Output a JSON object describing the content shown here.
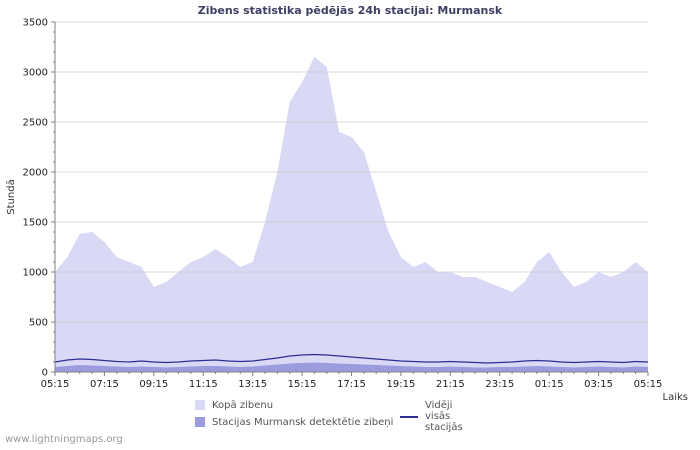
{
  "title": "Zibens statistika pēdējās 24h stacijai: Murmansk",
  "ylabel": "Stundā",
  "xlabel": "Laiks",
  "watermark": "www.lightningmaps.org",
  "colors": {
    "total_area": "#d9d9f6",
    "station_area": "#9b9bdd",
    "average_line": "#2d2d96",
    "grid": "#cccccc",
    "axis": "#808080",
    "tick_text": "#222222",
    "title_text": "#3f3f63"
  },
  "legend": [
    {
      "label": "Kopā zibenu",
      "type": "area",
      "color": "#d9d9f6"
    },
    {
      "label": "Stacijas Murmansk detektētie zibeņi",
      "type": "area",
      "color": "#9b9bdd"
    },
    {
      "label": "Vidēji visās stacijās",
      "type": "line",
      "color": "#2d2d96"
    }
  ],
  "chart_data": {
    "type": "area",
    "title": "Zibens statistika pēdējās 24h stacijai: Murmansk",
    "xlabel": "Laiks",
    "ylabel": "Stundā",
    "ylim": [
      0,
      3500
    ],
    "y_ticks": [
      0,
      500,
      1000,
      1500,
      2000,
      2500,
      3000,
      3500
    ],
    "x_tick_labels": [
      "05:15",
      "07:15",
      "09:15",
      "11:15",
      "13:15",
      "15:15",
      "17:15",
      "19:15",
      "21:15",
      "23:15",
      "01:15",
      "03:15",
      "05:15"
    ],
    "x": [
      "05:15",
      "05:45",
      "06:15",
      "06:45",
      "07:15",
      "07:45",
      "08:15",
      "08:45",
      "09:15",
      "09:45",
      "10:15",
      "10:45",
      "11:15",
      "11:45",
      "12:15",
      "12:45",
      "13:15",
      "13:45",
      "14:15",
      "14:45",
      "15:15",
      "15:45",
      "16:15",
      "16:45",
      "17:15",
      "17:45",
      "18:15",
      "18:45",
      "19:15",
      "19:45",
      "20:15",
      "20:45",
      "21:15",
      "21:45",
      "22:15",
      "22:45",
      "23:15",
      "23:45",
      "00:15",
      "00:45",
      "01:15",
      "01:45",
      "02:15",
      "02:45",
      "03:15",
      "03:45",
      "04:15",
      "04:45",
      "05:15"
    ],
    "series": [
      {
        "name": "Kopā zibenu",
        "values": [
          1000,
          1150,
          1380,
          1400,
          1300,
          1150,
          1100,
          1050,
          850,
          900,
          1000,
          1100,
          1150,
          1230,
          1150,
          1050,
          1100,
          1500,
          2000,
          2700,
          2900,
          3150,
          3050,
          2400,
          2350,
          2200,
          1800,
          1400,
          1150,
          1050,
          1100,
          1000,
          1000,
          950,
          950,
          900,
          850,
          800,
          900,
          1100,
          1200,
          1000,
          850,
          900,
          1000,
          950,
          1000,
          1100,
          1000
        ]
      },
      {
        "name": "Stacijas Murmansk detektētie zibeņi",
        "values": [
          50,
          60,
          70,
          65,
          60,
          55,
          50,
          55,
          50,
          45,
          50,
          55,
          60,
          60,
          55,
          50,
          55,
          65,
          75,
          85,
          90,
          95,
          90,
          85,
          80,
          75,
          70,
          65,
          60,
          55,
          50,
          50,
          55,
          50,
          45,
          45,
          50,
          50,
          55,
          60,
          55,
          50,
          45,
          50,
          55,
          50,
          45,
          55,
          50
        ]
      },
      {
        "name": "Vidēji visās stacijās",
        "values": [
          100,
          120,
          130,
          125,
          115,
          105,
          100,
          110,
          100,
          95,
          100,
          110,
          115,
          120,
          110,
          105,
          110,
          125,
          140,
          160,
          170,
          175,
          170,
          160,
          150,
          140,
          130,
          120,
          110,
          105,
          100,
          100,
          105,
          100,
          95,
          90,
          95,
          100,
          110,
          115,
          110,
          100,
          95,
          100,
          105,
          100,
          95,
          105,
          100
        ]
      }
    ]
  }
}
